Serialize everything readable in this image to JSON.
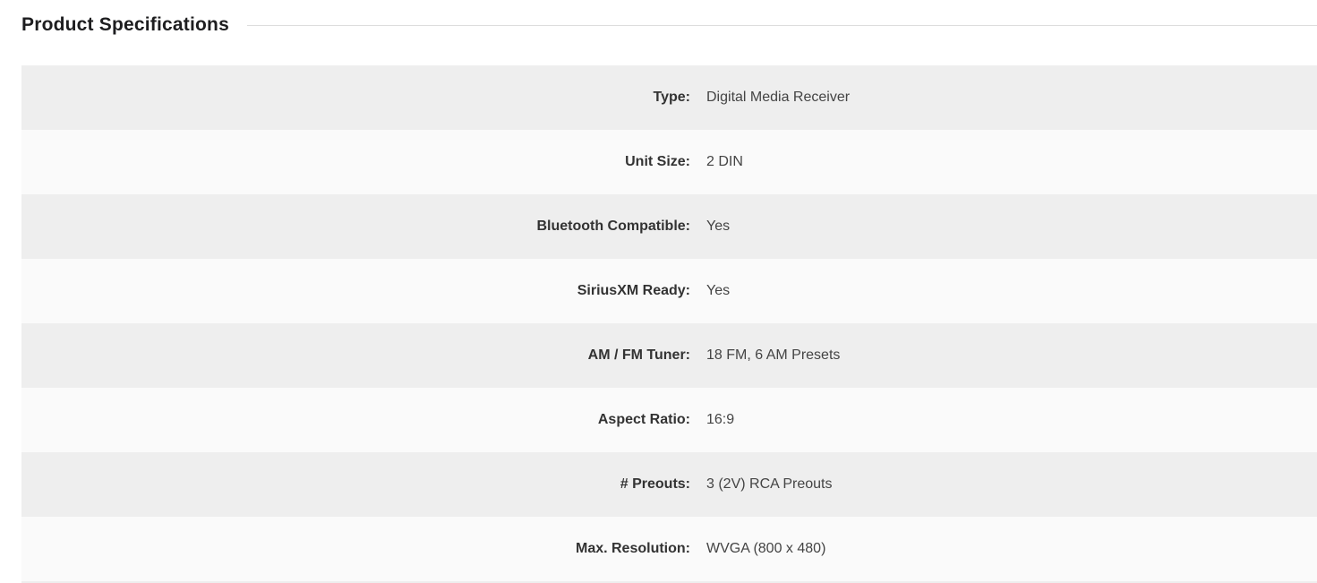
{
  "header": {
    "title": "Product Specifications"
  },
  "specs": [
    {
      "label": "Type:",
      "value": "Digital Media Receiver"
    },
    {
      "label": "Unit Size:",
      "value": "2 DIN"
    },
    {
      "label": "Bluetooth Compatible:",
      "value": "Yes"
    },
    {
      "label": "SiriusXM Ready:",
      "value": "Yes"
    },
    {
      "label": "AM / FM Tuner:",
      "value": "18 FM, 6 AM Presets"
    },
    {
      "label": "Aspect Ratio:",
      "value": "16:9"
    },
    {
      "label": "# Preouts:",
      "value": "3 (2V) RCA Preouts"
    },
    {
      "label": "Max. Resolution:",
      "value": "WVGA (800 x 480)"
    }
  ]
}
